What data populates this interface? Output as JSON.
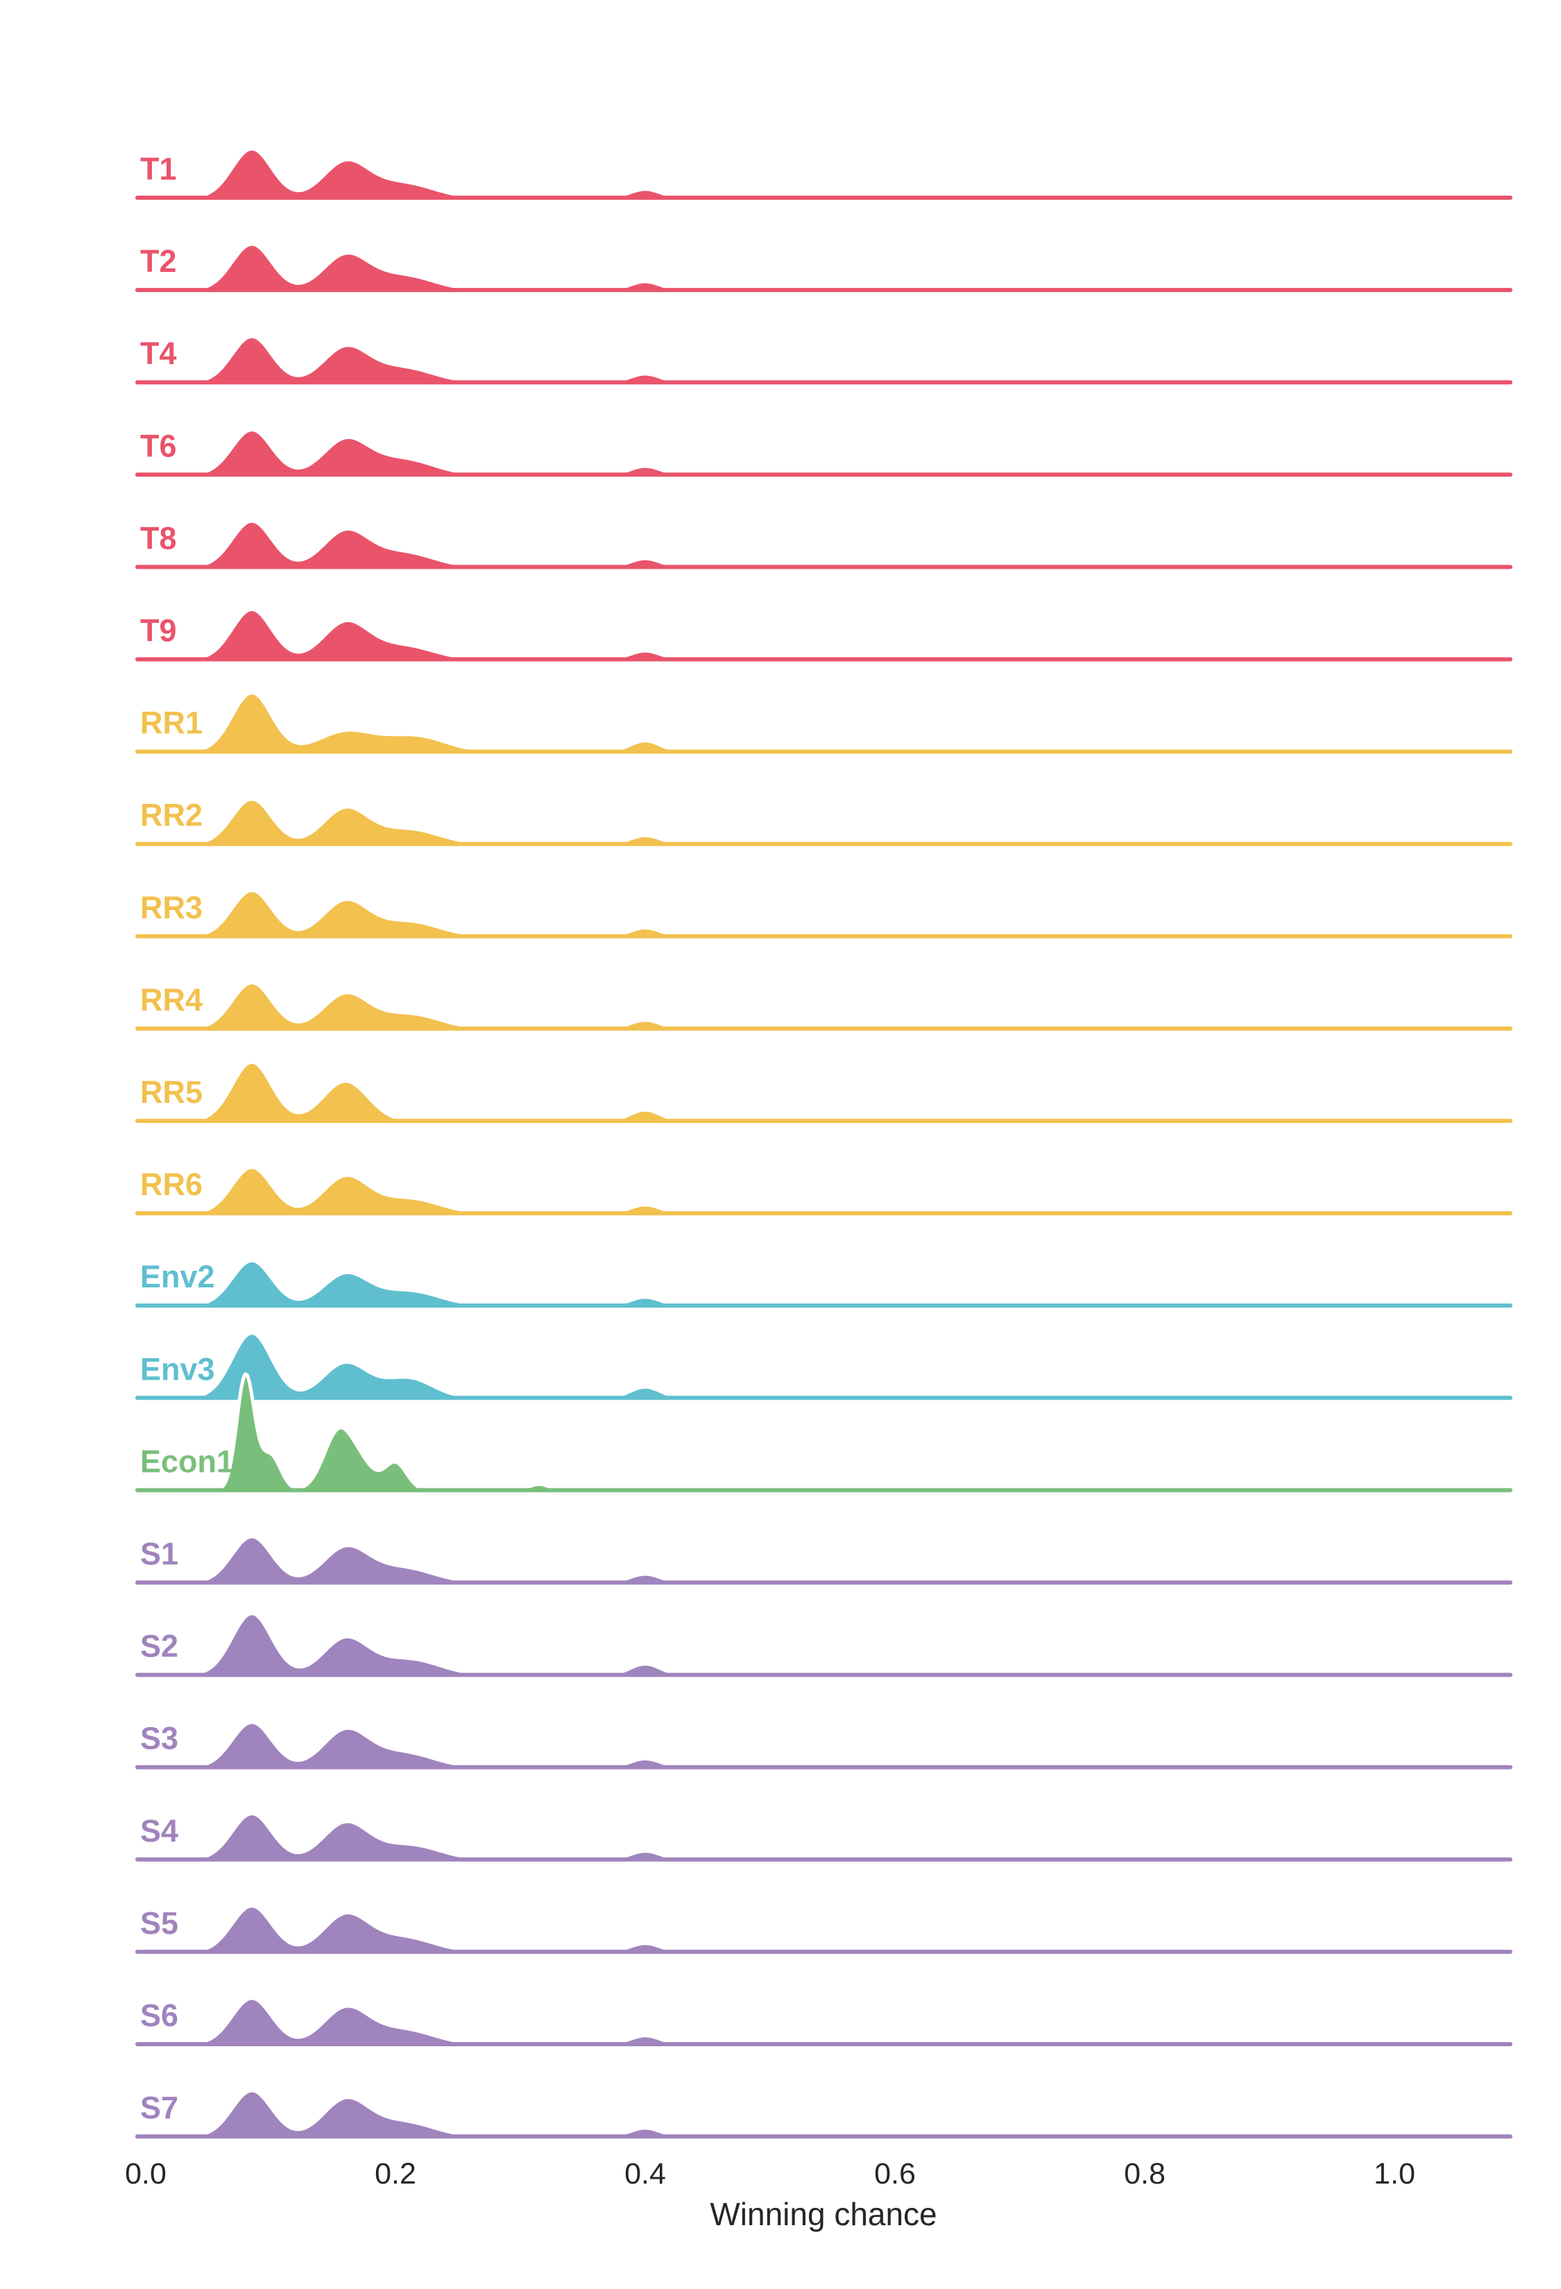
{
  "chart_data": {
    "type": "area",
    "subtype": "ridgeline-density",
    "title": "",
    "xlabel": "Winning chance",
    "ylabel": "",
    "xlim": [
      -0.02,
      1.1
    ],
    "x_ticks": [
      0.0,
      0.2,
      0.4,
      0.6,
      0.8,
      1.0
    ],
    "x_tick_labels": [
      "0.0",
      "0.2",
      "0.4",
      "0.6",
      "0.8",
      "1.0"
    ],
    "grid": false,
    "legend": "none",
    "colors": {
      "T": "#e9546b",
      "RR": "#f2c14e",
      "Env": "#5fbfcf",
      "Econ": "#79bf7b",
      "S": "#a084bd"
    },
    "series": [
      {
        "name": "T1",
        "group": "T",
        "peaks": [
          {
            "x": 0.085,
            "height": 0.98,
            "width": 0.016
          },
          {
            "x": 0.16,
            "height": 0.7,
            "width": 0.018
          },
          {
            "x": 0.205,
            "height": 0.3,
            "width": 0.025
          },
          {
            "x": 0.31,
            "height": 0.03,
            "width": 0.01
          },
          {
            "x": 0.4,
            "height": 0.17,
            "width": 0.012
          }
        ]
      },
      {
        "name": "T2",
        "group": "T",
        "peaks": [
          {
            "x": 0.085,
            "height": 0.92,
            "width": 0.016
          },
          {
            "x": 0.16,
            "height": 0.68,
            "width": 0.018
          },
          {
            "x": 0.205,
            "height": 0.3,
            "width": 0.025
          },
          {
            "x": 0.31,
            "height": 0.03,
            "width": 0.01
          },
          {
            "x": 0.4,
            "height": 0.17,
            "width": 0.012
          }
        ]
      },
      {
        "name": "T4",
        "group": "T",
        "peaks": [
          {
            "x": 0.085,
            "height": 0.92,
            "width": 0.016
          },
          {
            "x": 0.16,
            "height": 0.68,
            "width": 0.018
          },
          {
            "x": 0.205,
            "height": 0.3,
            "width": 0.025
          },
          {
            "x": 0.31,
            "height": 0.03,
            "width": 0.01
          },
          {
            "x": 0.4,
            "height": 0.17,
            "width": 0.012
          }
        ]
      },
      {
        "name": "T6",
        "group": "T",
        "peaks": [
          {
            "x": 0.085,
            "height": 0.9,
            "width": 0.016
          },
          {
            "x": 0.16,
            "height": 0.68,
            "width": 0.018
          },
          {
            "x": 0.205,
            "height": 0.32,
            "width": 0.025
          },
          {
            "x": 0.31,
            "height": 0.03,
            "width": 0.01
          },
          {
            "x": 0.4,
            "height": 0.17,
            "width": 0.012
          }
        ]
      },
      {
        "name": "T8",
        "group": "T",
        "peaks": [
          {
            "x": 0.085,
            "height": 0.92,
            "width": 0.016
          },
          {
            "x": 0.16,
            "height": 0.7,
            "width": 0.018
          },
          {
            "x": 0.205,
            "height": 0.3,
            "width": 0.025
          },
          {
            "x": 0.31,
            "height": 0.03,
            "width": 0.01
          },
          {
            "x": 0.4,
            "height": 0.17,
            "width": 0.012
          }
        ]
      },
      {
        "name": "T9",
        "group": "T",
        "peaks": [
          {
            "x": 0.085,
            "height": 1.0,
            "width": 0.016
          },
          {
            "x": 0.16,
            "height": 0.72,
            "width": 0.018
          },
          {
            "x": 0.205,
            "height": 0.28,
            "width": 0.025
          },
          {
            "x": 0.31,
            "height": 0.03,
            "width": 0.01
          },
          {
            "x": 0.4,
            "height": 0.17,
            "width": 0.012
          }
        ]
      },
      {
        "name": "RR1",
        "group": "RR",
        "peaks": [
          {
            "x": 0.085,
            "height": 1.18,
            "width": 0.016
          },
          {
            "x": 0.16,
            "height": 0.4,
            "width": 0.022
          },
          {
            "x": 0.215,
            "height": 0.32,
            "width": 0.025
          },
          {
            "x": 0.31,
            "height": 0.03,
            "width": 0.01
          },
          {
            "x": 0.4,
            "height": 0.22,
            "width": 0.012
          }
        ]
      },
      {
        "name": "RR2",
        "group": "RR",
        "peaks": [
          {
            "x": 0.085,
            "height": 0.9,
            "width": 0.016
          },
          {
            "x": 0.16,
            "height": 0.7,
            "width": 0.018
          },
          {
            "x": 0.21,
            "height": 0.3,
            "width": 0.025
          },
          {
            "x": 0.31,
            "height": 0.03,
            "width": 0.01
          },
          {
            "x": 0.4,
            "height": 0.17,
            "width": 0.012
          }
        ]
      },
      {
        "name": "RR3",
        "group": "RR",
        "peaks": [
          {
            "x": 0.085,
            "height": 0.92,
            "width": 0.016
          },
          {
            "x": 0.16,
            "height": 0.7,
            "width": 0.018
          },
          {
            "x": 0.21,
            "height": 0.3,
            "width": 0.025
          },
          {
            "x": 0.31,
            "height": 0.03,
            "width": 0.01
          },
          {
            "x": 0.4,
            "height": 0.17,
            "width": 0.012
          }
        ]
      },
      {
        "name": "RR4",
        "group": "RR",
        "peaks": [
          {
            "x": 0.085,
            "height": 0.92,
            "width": 0.016
          },
          {
            "x": 0.16,
            "height": 0.68,
            "width": 0.018
          },
          {
            "x": 0.21,
            "height": 0.3,
            "width": 0.025
          },
          {
            "x": 0.31,
            "height": 0.03,
            "width": 0.01
          },
          {
            "x": 0.4,
            "height": 0.17,
            "width": 0.012
          }
        ]
      },
      {
        "name": "RR5",
        "group": "RR",
        "peaks": [
          {
            "x": 0.085,
            "height": 1.18,
            "width": 0.016
          },
          {
            "x": 0.16,
            "height": 0.8,
            "width": 0.018
          },
          {
            "x": 0.4,
            "height": 0.22,
            "width": 0.012
          }
        ]
      },
      {
        "name": "RR6",
        "group": "RR",
        "peaks": [
          {
            "x": 0.085,
            "height": 0.92,
            "width": 0.016
          },
          {
            "x": 0.16,
            "height": 0.72,
            "width": 0.018
          },
          {
            "x": 0.21,
            "height": 0.3,
            "width": 0.025
          },
          {
            "x": 0.31,
            "height": 0.03,
            "width": 0.01
          },
          {
            "x": 0.4,
            "height": 0.17,
            "width": 0.012
          }
        ]
      },
      {
        "name": "Env2",
        "group": "Env",
        "peaks": [
          {
            "x": 0.085,
            "height": 0.9,
            "width": 0.016
          },
          {
            "x": 0.16,
            "height": 0.62,
            "width": 0.018
          },
          {
            "x": 0.21,
            "height": 0.3,
            "width": 0.025
          },
          {
            "x": 0.31,
            "height": 0.03,
            "width": 0.01
          },
          {
            "x": 0.4,
            "height": 0.17,
            "width": 0.012
          }
        ]
      },
      {
        "name": "Env3",
        "group": "Env",
        "peaks": [
          {
            "x": 0.085,
            "height": 1.3,
            "width": 0.016
          },
          {
            "x": 0.16,
            "height": 0.7,
            "width": 0.018
          },
          {
            "x": 0.21,
            "height": 0.4,
            "width": 0.02
          },
          {
            "x": 0.4,
            "height": 0.22,
            "width": 0.012
          }
        ]
      },
      {
        "name": "Econ1",
        "group": "Econ",
        "peaks": [
          {
            "x": 0.08,
            "height": 2.3,
            "width": 0.007
          },
          {
            "x": 0.1,
            "height": 0.7,
            "width": 0.008
          },
          {
            "x": 0.155,
            "height": 1.2,
            "width": 0.012
          },
          {
            "x": 0.175,
            "height": 0.35,
            "width": 0.01
          },
          {
            "x": 0.2,
            "height": 0.55,
            "width": 0.009
          },
          {
            "x": 0.25,
            "height": 0.05,
            "width": 0.008
          },
          {
            "x": 0.28,
            "height": 0.04,
            "width": 0.008
          },
          {
            "x": 0.315,
            "height": 0.12,
            "width": 0.008
          }
        ]
      },
      {
        "name": "S1",
        "group": "S",
        "peaks": [
          {
            "x": 0.085,
            "height": 0.92,
            "width": 0.016
          },
          {
            "x": 0.16,
            "height": 0.68,
            "width": 0.018
          },
          {
            "x": 0.205,
            "height": 0.3,
            "width": 0.025
          },
          {
            "x": 0.31,
            "height": 0.03,
            "width": 0.01
          },
          {
            "x": 0.4,
            "height": 0.17,
            "width": 0.012
          }
        ]
      },
      {
        "name": "S2",
        "group": "S",
        "peaks": [
          {
            "x": 0.085,
            "height": 1.23,
            "width": 0.016
          },
          {
            "x": 0.16,
            "height": 0.72,
            "width": 0.018
          },
          {
            "x": 0.21,
            "height": 0.32,
            "width": 0.025
          },
          {
            "x": 0.31,
            "height": 0.03,
            "width": 0.01
          },
          {
            "x": 0.4,
            "height": 0.22,
            "width": 0.012
          }
        ]
      },
      {
        "name": "S3",
        "group": "S",
        "peaks": [
          {
            "x": 0.085,
            "height": 0.9,
            "width": 0.016
          },
          {
            "x": 0.16,
            "height": 0.72,
            "width": 0.018
          },
          {
            "x": 0.205,
            "height": 0.3,
            "width": 0.025
          },
          {
            "x": 0.31,
            "height": 0.03,
            "width": 0.01
          },
          {
            "x": 0.4,
            "height": 0.17,
            "width": 0.012
          }
        ]
      },
      {
        "name": "S4",
        "group": "S",
        "peaks": [
          {
            "x": 0.085,
            "height": 0.92,
            "width": 0.016
          },
          {
            "x": 0.16,
            "height": 0.72,
            "width": 0.018
          },
          {
            "x": 0.21,
            "height": 0.3,
            "width": 0.025
          },
          {
            "x": 0.31,
            "height": 0.03,
            "width": 0.01
          },
          {
            "x": 0.4,
            "height": 0.17,
            "width": 0.012
          }
        ]
      },
      {
        "name": "S5",
        "group": "S",
        "peaks": [
          {
            "x": 0.085,
            "height": 0.92,
            "width": 0.016
          },
          {
            "x": 0.16,
            "height": 0.72,
            "width": 0.018
          },
          {
            "x": 0.205,
            "height": 0.3,
            "width": 0.025
          },
          {
            "x": 0.31,
            "height": 0.03,
            "width": 0.01
          },
          {
            "x": 0.4,
            "height": 0.17,
            "width": 0.012
          }
        ]
      },
      {
        "name": "S6",
        "group": "S",
        "peaks": [
          {
            "x": 0.085,
            "height": 0.92,
            "width": 0.016
          },
          {
            "x": 0.16,
            "height": 0.7,
            "width": 0.018
          },
          {
            "x": 0.205,
            "height": 0.3,
            "width": 0.025
          },
          {
            "x": 0.31,
            "height": 0.03,
            "width": 0.01
          },
          {
            "x": 0.4,
            "height": 0.17,
            "width": 0.012
          }
        ]
      },
      {
        "name": "S7",
        "group": "S",
        "peaks": [
          {
            "x": 0.085,
            "height": 0.92,
            "width": 0.016
          },
          {
            "x": 0.16,
            "height": 0.72,
            "width": 0.018
          },
          {
            "x": 0.205,
            "height": 0.3,
            "width": 0.025
          },
          {
            "x": 0.31,
            "height": 0.03,
            "width": 0.01
          },
          {
            "x": 0.4,
            "height": 0.17,
            "width": 0.012
          }
        ]
      }
    ]
  }
}
